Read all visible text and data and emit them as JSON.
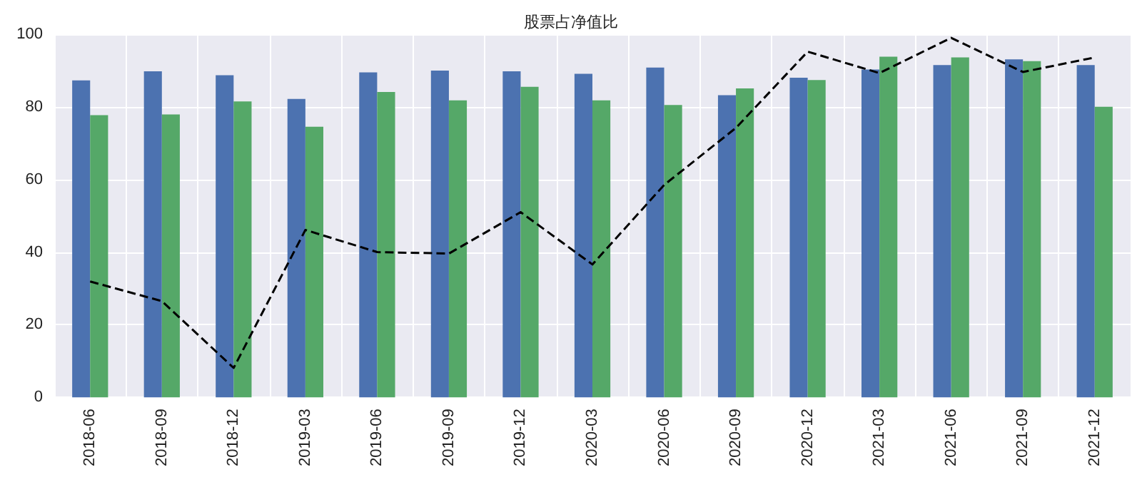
{
  "chart_data": {
    "type": "bar",
    "title": "股票占净值比",
    "categories": [
      "2018-06",
      "2018-09",
      "2018-12",
      "2019-03",
      "2019-06",
      "2019-09",
      "2019-12",
      "2020-03",
      "2020-06",
      "2020-09",
      "2020-12",
      "2021-03",
      "2021-06",
      "2021-09",
      "2021-12"
    ],
    "series": [
      {
        "color": "#4c72b0",
        "values": [
          87.3,
          89.8,
          88.7,
          82.2,
          89.5,
          90,
          89.8,
          89.1,
          90.8,
          83.2,
          88,
          90.3,
          91.5,
          93.1,
          91.5
        ]
      },
      {
        "color": "#55a868",
        "values": [
          77.7,
          77.9,
          81.5,
          74.5,
          84.1,
          81.8,
          85.5,
          81.8,
          80.5,
          85.1,
          87.4,
          93.8,
          93.6,
          92.6,
          80
        ]
      },
      {
        "type": "line",
        "color": "#000000",
        "line_style": "dashed",
        "marker": "none",
        "values": [
          31.9,
          26.5,
          8.1,
          46.1,
          40,
          39.6,
          51,
          36.6,
          58.5,
          74.2,
          95.2,
          89.3,
          99,
          89.6,
          93.6
        ]
      }
    ],
    "ylim": [
      0,
      100
    ],
    "yticks": [
      0,
      20,
      40,
      60,
      80,
      100
    ],
    "grid": true
  }
}
